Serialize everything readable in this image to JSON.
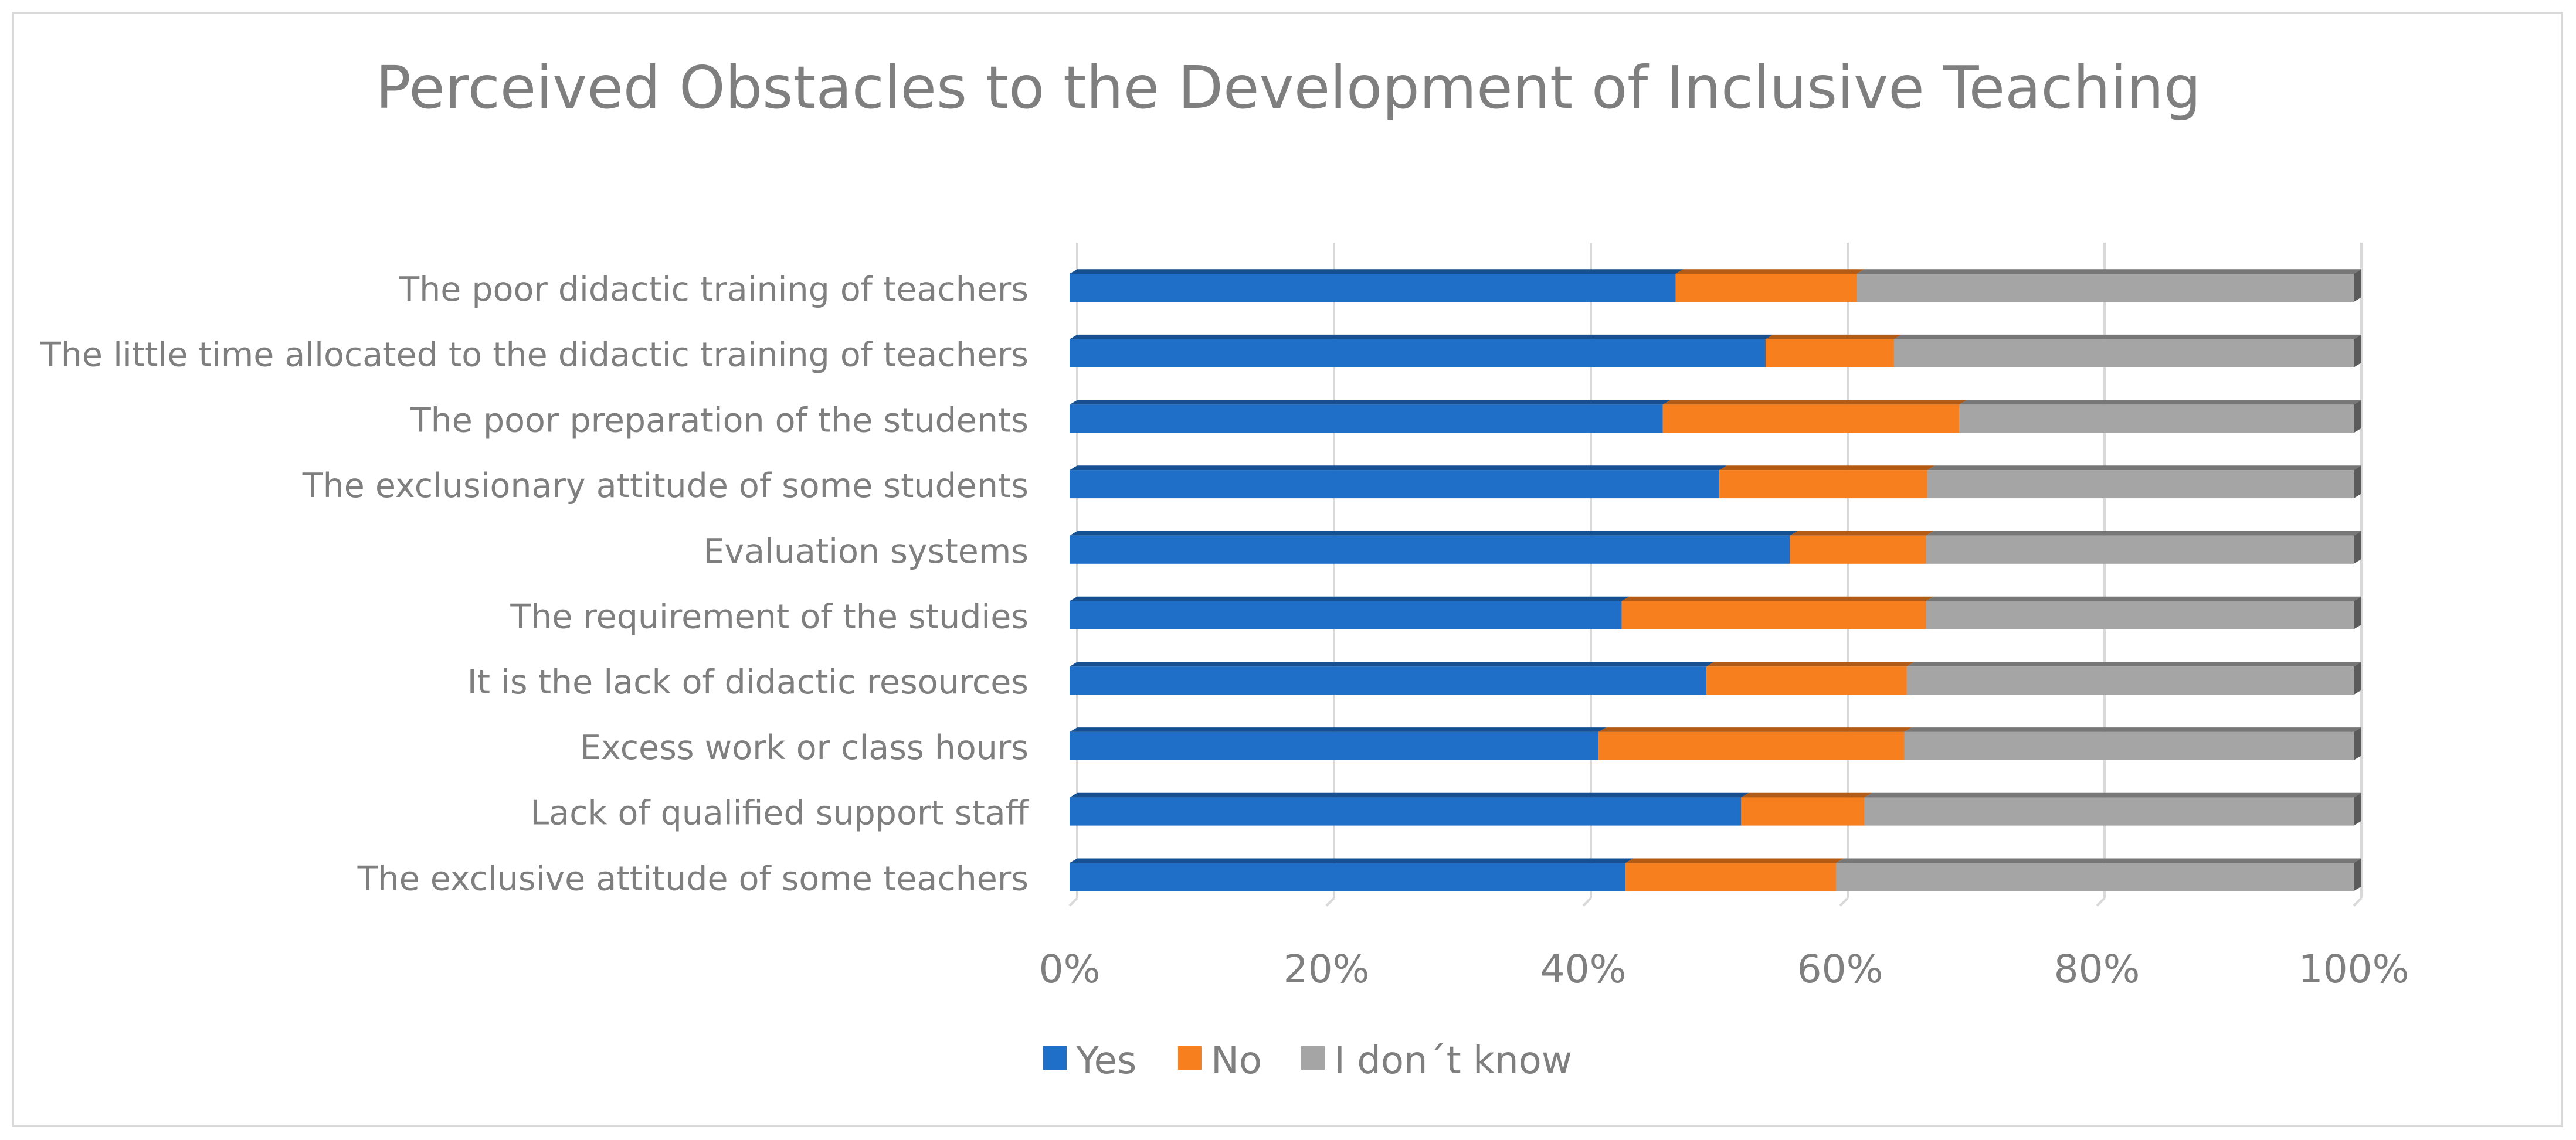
{
  "chart_data": {
    "type": "bar",
    "orientation": "horizontal",
    "stacked": "percent",
    "title": "Perceived Obstacles to the Development of Inclusive Teaching",
    "xlabel": "",
    "ylabel": "",
    "xlim": [
      0,
      100
    ],
    "x_ticks": [
      "0%",
      "20%",
      "40%",
      "60%",
      "80%",
      "100%"
    ],
    "grid": true,
    "legend_position": "bottom",
    "categories": [
      "The poor didactic training of teachers",
      "The little time allocated to the didactic training of teachers",
      "The poor preparation of the students",
      "The exclusionary attitude of some students",
      "Evaluation systems",
      "The requirement of the studies",
      "It is the lack of didactic resources",
      "Excess work or class hours",
      "Lack of qualified support staff",
      "The exclusive attitude of some teachers"
    ],
    "series": [
      {
        "name": "Yes",
        "color": "#1f6fc8",
        "values": [
          47.2,
          54.2,
          46.2,
          50.6,
          56.1,
          43.0,
          49.6,
          41.2,
          52.3,
          43.3
        ]
      },
      {
        "name": "No",
        "color": "#f77f1e",
        "values": [
          14.1,
          10.0,
          23.1,
          16.2,
          10.6,
          23.7,
          15.6,
          23.8,
          9.6,
          16.4
        ]
      },
      {
        "name": "I don´t know",
        "color": "#a5a5a5",
        "values": [
          38.7,
          35.8,
          30.7,
          33.2,
          33.3,
          33.3,
          34.8,
          35.0,
          38.1,
          40.3
        ]
      }
    ]
  }
}
